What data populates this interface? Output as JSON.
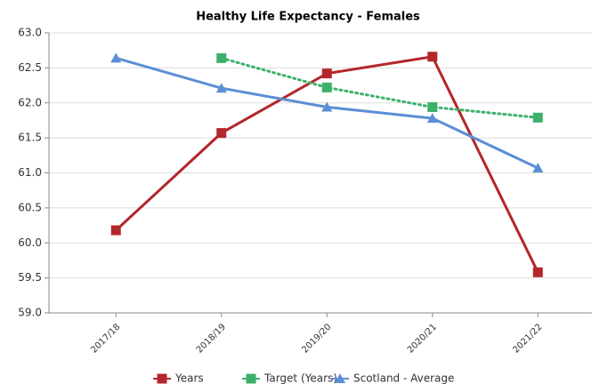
{
  "chart_data": {
    "type": "line",
    "title": "Healthy Life Expectancy - Females",
    "categories": [
      "2017/18",
      "2018/19",
      "2019/20",
      "2020/21",
      "2021/22"
    ],
    "series": [
      {
        "name": "Years",
        "color": "#b3262a",
        "marker": "square",
        "dash": "solid",
        "values": [
          60.18,
          61.57,
          62.42,
          62.66,
          59.58
        ]
      },
      {
        "name": "Target (Years)",
        "color": "#3cb06a",
        "marker": "square",
        "dash": "dotted",
        "values": [
          null,
          62.64,
          62.22,
          61.94,
          61.79
        ]
      },
      {
        "name": "Scotland - Average",
        "color": "#5b8fd6",
        "marker": "triangle",
        "dash": "solid",
        "values": [
          62.64,
          62.21,
          61.94,
          61.78,
          61.07
        ]
      }
    ],
    "ylim": [
      59,
      63
    ],
    "yticks": [
      {
        "value": 59,
        "label": "59.0"
      },
      59.5,
      {
        "value": 60,
        "label": "60.0"
      },
      60.5,
      {
        "value": 61,
        "label": "61.0"
      },
      61.5,
      {
        "value": 62,
        "label": "62.0"
      },
      62.5,
      {
        "value": 63,
        "label": "63.0"
      }
    ],
    "grid": true,
    "legend": "bottom"
  }
}
